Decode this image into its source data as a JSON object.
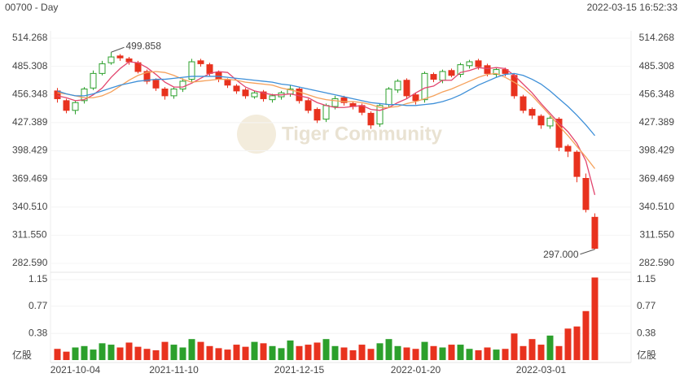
{
  "chart_data": {
    "type": "candlestick",
    "title": "00700 - Day",
    "subtitle": "2022-03-15 16:52:33",
    "watermark": "Tiger Community",
    "volume_unit": "亿股",
    "annotations": [
      "499.858",
      "297.000"
    ],
    "categories": [
      null,
      null,
      "2021-10-04",
      null,
      null,
      null,
      null,
      null,
      null,
      null,
      null,
      null,
      null,
      "2021-11-10",
      null,
      null,
      null,
      null,
      null,
      null,
      null,
      null,
      null,
      null,
      null,
      null,
      null,
      "2021-12-15",
      null,
      null,
      null,
      null,
      null,
      null,
      null,
      null,
      null,
      null,
      null,
      null,
      "2022-01-20",
      null,
      null,
      null,
      null,
      null,
      null,
      null,
      null,
      null,
      null,
      null,
      null,
      null,
      "2022-03-01",
      null,
      null,
      null,
      null,
      null,
      null
    ],
    "open": [
      460,
      450,
      440,
      450,
      463,
      478,
      489,
      496,
      493,
      489,
      480,
      471,
      462,
      455,
      462,
      472,
      491,
      487,
      479,
      471,
      465,
      461,
      454,
      459,
      451,
      454,
      457,
      462,
      450,
      441,
      431,
      444,
      453,
      447,
      445,
      437,
      426,
      446,
      461,
      471,
      456,
      451,
      477,
      471,
      481,
      477,
      486,
      491,
      486,
      477,
      482,
      476,
      454,
      441,
      434,
      424,
      431,
      403,
      397,
      370,
      330
    ],
    "high": [
      463,
      452,
      450,
      464,
      481,
      491,
      499.858,
      498,
      495,
      491,
      482,
      473,
      464,
      464,
      473,
      493,
      493,
      489,
      481,
      473,
      467,
      463,
      460,
      461,
      457,
      460,
      466,
      464,
      452,
      443,
      447,
      455,
      455,
      449,
      447,
      439,
      447,
      464,
      472,
      473,
      458,
      480,
      479,
      482,
      483,
      489,
      492,
      493,
      488,
      484,
      484,
      478,
      456,
      443,
      436,
      434,
      433,
      405,
      399,
      375,
      334
    ],
    "low": [
      448,
      437,
      436,
      447,
      461,
      476,
      487,
      491,
      487,
      478,
      467,
      460,
      451,
      452,
      459,
      469,
      485,
      475,
      469,
      463,
      457,
      452,
      452,
      449,
      448,
      451,
      454,
      447,
      437,
      427,
      428,
      441,
      445,
      441,
      435,
      421,
      423,
      443,
      458,
      452,
      446,
      448,
      469,
      468,
      474,
      474,
      483,
      482,
      475,
      474,
      475,
      452,
      437,
      431,
      421,
      421,
      398,
      392,
      366,
      335,
      297
    ],
    "close": [
      452,
      440,
      448,
      462,
      478,
      488,
      495,
      494,
      490,
      480,
      470,
      463,
      455,
      462,
      470,
      490,
      488,
      478,
      472,
      466,
      460,
      455,
      458,
      452,
      455,
      458,
      462,
      450,
      440,
      430,
      445,
      452,
      448,
      444,
      438,
      425,
      445,
      462,
      470,
      455,
      450,
      478,
      472,
      480,
      476,
      487,
      490,
      485,
      478,
      482,
      478,
      455,
      440,
      435,
      425,
      432,
      402,
      398,
      372,
      338,
      298
    ],
    "volume": [
      0.16,
      0.12,
      0.18,
      0.2,
      0.15,
      0.24,
      0.22,
      0.18,
      0.25,
      0.19,
      0.16,
      0.14,
      0.26,
      0.22,
      0.18,
      0.3,
      0.26,
      0.2,
      0.17,
      0.15,
      0.22,
      0.19,
      0.26,
      0.24,
      0.2,
      0.17,
      0.28,
      0.2,
      0.22,
      0.25,
      0.3,
      0.2,
      0.18,
      0.14,
      0.22,
      0.16,
      0.24,
      0.3,
      0.2,
      0.18,
      0.16,
      0.26,
      0.2,
      0.18,
      0.22,
      0.22,
      0.16,
      0.14,
      0.18,
      0.15,
      0.16,
      0.38,
      0.2,
      0.3,
      0.22,
      0.35,
      0.2,
      0.45,
      0.48,
      0.7,
      1.18
    ],
    "up_color": "#2ca02c",
    "down_color": "#e8321e",
    "series": [
      {
        "color": "#e2456e",
        "values": [
          455,
          453,
          450,
          451,
          456,
          463,
          474,
          483,
          490,
          489,
          484,
          477,
          469,
          464,
          464,
          468,
          473,
          478,
          480,
          479,
          471,
          464,
          460,
          458,
          456,
          456,
          457,
          455,
          453,
          448,
          445,
          443,
          443,
          444,
          445,
          441,
          440,
          443,
          448,
          452,
          458,
          463,
          465,
          471,
          471,
          479,
          481,
          484,
          483,
          484,
          483,
          476,
          467,
          458,
          447,
          437,
          427,
          418,
          406,
          388,
          353
        ]
      },
      {
        "color": "#f5a05a",
        "values": [
          458,
          457,
          455,
          453,
          453,
          455,
          459,
          465,
          471,
          476,
          479,
          480,
          479,
          476,
          472,
          469,
          470,
          471,
          472,
          472,
          471,
          469,
          468,
          467,
          466,
          463,
          461,
          459,
          456,
          453,
          451,
          450,
          449,
          449,
          448,
          446,
          443,
          443,
          444,
          447,
          449,
          452,
          455,
          459,
          462,
          466,
          470,
          474,
          477,
          478,
          474,
          469,
          463,
          455,
          445,
          435,
          424,
          414,
          403,
          392,
          380
        ]
      },
      {
        "color": "#3d8fd8",
        "values": [
          460,
          457,
          455,
          455,
          457,
          460,
          463,
          466,
          468,
          470,
          471,
          472,
          472,
          473,
          474,
          475,
          475,
          475,
          475,
          474,
          473,
          472,
          471,
          470,
          469,
          467,
          466,
          464,
          462,
          460,
          458,
          456,
          454,
          452,
          450,
          448,
          447,
          446,
          446,
          445,
          445,
          446,
          447,
          449,
          452,
          456,
          461,
          466,
          470,
          474,
          477,
          478,
          476,
          472,
          467,
          460,
          452,
          444,
          435,
          425,
          414
        ]
      }
    ],
    "ylim": [
      275.9,
      521.8
    ],
    "yticks": [
      514.268,
      485.308,
      456.348,
      427.389,
      398.429,
      369.469,
      {
        "value": 340.51,
        "label": "340.510"
      },
      {
        "value": 311.55,
        "label": "311.550"
      },
      {
        "value": 282.59,
        "label": "282.590"
      }
    ],
    "vlim": [
      0,
      1.22
    ],
    "vticks": [
      1.15,
      0.77,
      0.38
    ],
    "grid": true
  }
}
